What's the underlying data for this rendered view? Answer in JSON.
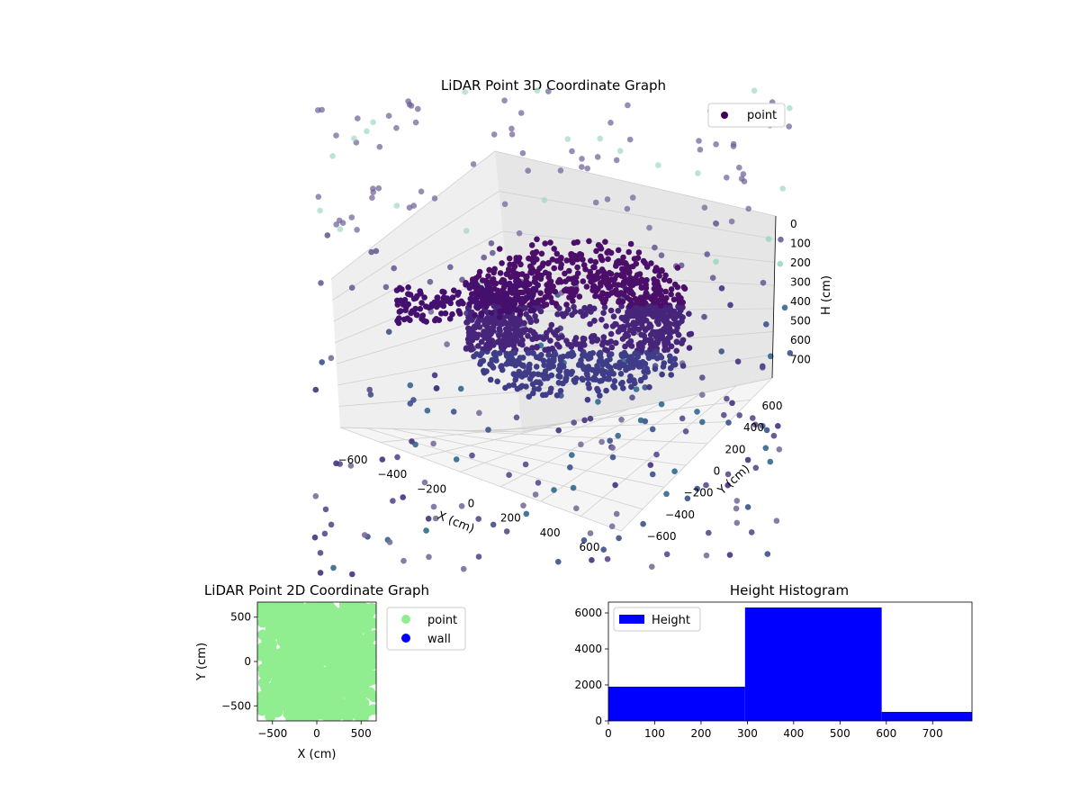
{
  "chart_data": [
    {
      "type": "scatter3d",
      "title": "LiDAR Point 3D Coordinate Graph",
      "xlabel": "X (cm)",
      "ylabel": "Y (cm)",
      "zlabel": "H (cm)",
      "xlim": [
        -700,
        700
      ],
      "ylim": [
        -700,
        700
      ],
      "zlim": [
        0,
        750
      ],
      "z_inverted": true,
      "x_ticks": [
        "−600",
        "−400",
        "−200",
        "0",
        "200",
        "400",
        "600"
      ],
      "y_ticks": [
        "−600",
        "−400",
        "−200",
        "0",
        "200",
        "400",
        "600"
      ],
      "z_ticks": [
        "0",
        "100",
        "200",
        "300",
        "400",
        "500",
        "600",
        "700"
      ],
      "grid": true,
      "legend": {
        "position": "top-right",
        "entries": [
          "point"
        ]
      },
      "colormap": "viridis",
      "series": [
        {
          "name": "point",
          "cluster": {
            "center": [
              50,
              0,
              300
            ],
            "radius": 400,
            "height_range": [
              150,
              450
            ]
          },
          "note_points": "dense ring-shaped cluster plus sparse scattered points"
        }
      ]
    },
    {
      "type": "scatter",
      "title": "LiDAR Point 2D Coordinate Graph",
      "xlabel": "X (cm)",
      "ylabel": "Y (cm)",
      "xlim": [
        -670,
        670
      ],
      "ylim": [
        -670,
        670
      ],
      "x_ticks": [
        "−500",
        "0",
        "500"
      ],
      "y_ticks": [
        "−500",
        "0",
        "500"
      ],
      "legend": {
        "position": "outside-right",
        "entries": [
          "point",
          "wall"
        ]
      },
      "series": [
        {
          "name": "point",
          "color": "#90ee90"
        },
        {
          "name": "wall",
          "color": "#0000ff"
        }
      ]
    },
    {
      "type": "bar",
      "title": "Height Histogram",
      "bins": [
        {
          "from": 0,
          "to": 295,
          "count": 1900
        },
        {
          "from": 295,
          "to": 590,
          "count": 6300
        },
        {
          "from": 590,
          "to": 785,
          "count": 500
        }
      ],
      "xlim": [
        0,
        785
      ],
      "ylim": [
        0,
        6600
      ],
      "x_ticks": [
        "0",
        "100",
        "200",
        "300",
        "400",
        "500",
        "600",
        "700"
      ],
      "y_ticks": [
        "0",
        "2000",
        "4000",
        "6000"
      ],
      "legend": {
        "position": "top-left",
        "entries": [
          "Height"
        ]
      },
      "series": [
        {
          "name": "Height",
          "color": "#0000ff"
        }
      ]
    }
  ]
}
